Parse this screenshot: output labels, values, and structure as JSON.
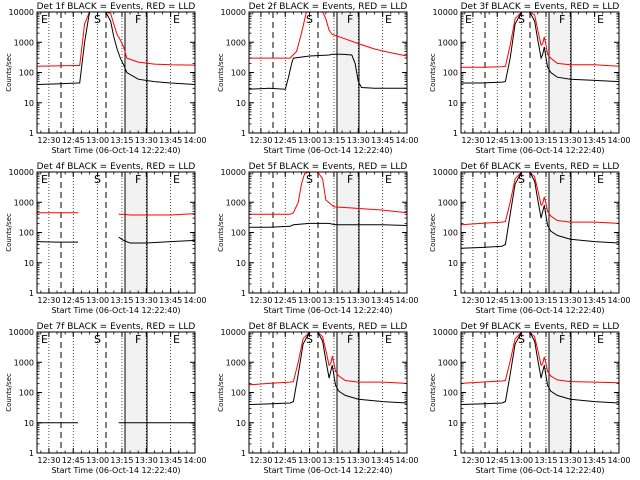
{
  "chart_data": [
    {
      "type": "line",
      "title": "Det 1f BLACK = Events, RED = LLD",
      "xlabel": "Start Time (06-Oct-14 12:22:40)",
      "ylabel": "Counts/sec",
      "xticks": [
        "12:30",
        "12:45",
        "13:00",
        "13:15",
        "13:30",
        "13:45",
        "14:00"
      ],
      "yticks": [
        "1",
        "10",
        "100",
        "1000",
        "10000"
      ],
      "yscale": "log",
      "xlim": [
        "12:22:40",
        "14:00"
      ],
      "ylim": [
        1,
        10000
      ],
      "markers": [
        "E",
        "S",
        "F",
        "E"
      ],
      "series": [
        {
          "color": "#ff0000",
          "x": [
            "12:22:40",
            "12:35",
            "12:48",
            "12:49",
            "12:52",
            "12:55",
            "12:57",
            "13:00",
            "13:05",
            "13:08",
            "13:10",
            "13:12",
            "13:14",
            "13:16",
            "13:18",
            "13:25",
            "13:35",
            "13:45",
            "14:00"
          ],
          "y": [
            160,
            165,
            170,
            170,
            4000,
            10000,
            10000,
            10000,
            10000,
            9000,
            4000,
            1800,
            1200,
            700,
            300,
            220,
            190,
            180,
            175
          ]
        },
        {
          "color": "#000000",
          "x": [
            "12:22:40",
            "12:35",
            "12:48",
            "12:49",
            "12:52",
            "12:55",
            "12:57",
            "13:00",
            "13:05",
            "13:08",
            "13:10",
            "13:12",
            "13:14",
            "13:16",
            "13:18",
            "13:25",
            "13:35",
            "13:45",
            "14:00"
          ],
          "y": [
            40,
            42,
            45,
            45,
            1000,
            10000,
            10000,
            10000,
            10000,
            5000,
            1500,
            600,
            300,
            180,
            100,
            60,
            50,
            45,
            40
          ]
        }
      ]
    },
    {
      "type": "line",
      "title": "Det 2f BLACK = Events, RED = LLD",
      "xlabel": "Start Time (06-Oct-14 12:22:40)",
      "ylabel": "Counts/sec",
      "xticks": [
        "12:30",
        "12:45",
        "13:00",
        "13:15",
        "13:30",
        "13:45",
        "14:00"
      ],
      "yticks": [
        "1",
        "10",
        "100",
        "1000",
        "10000"
      ],
      "yscale": "log",
      "xlim": [
        "12:22:40",
        "14:00"
      ],
      "ylim": [
        1,
        10000
      ],
      "markers": [
        "S",
        "F",
        "E"
      ],
      "series": [
        {
          "color": "#ff0000",
          "x": [
            "12:22:40",
            "12:35",
            "12:48",
            "12:52",
            "12:55",
            "12:58",
            "13:00",
            "13:05",
            "13:08",
            "13:10",
            "13:12",
            "13:14",
            "13:20",
            "13:30",
            "13:40",
            "13:50",
            "14:00"
          ],
          "y": [
            300,
            300,
            300,
            500,
            2000,
            10000,
            10000,
            10000,
            10000,
            6000,
            2500,
            1800,
            1400,
            900,
            600,
            450,
            350
          ]
        },
        {
          "color": "#000000",
          "x": [
            "12:22:40",
            "12:35",
            "12:45",
            "12:47",
            "12:49",
            "12:50",
            "13:00",
            "13:12",
            "13:14",
            "13:20",
            "13:26",
            "13:28",
            "13:30",
            "13:32",
            "13:40",
            "14:00"
          ],
          "y": [
            28,
            30,
            28,
            70,
            200,
            300,
            350,
            380,
            400,
            400,
            380,
            200,
            50,
            32,
            30,
            30
          ]
        }
      ]
    },
    {
      "type": "line",
      "title": "Det 3f BLACK = Events, RED = LLD",
      "xlabel": "Start Time (06-Oct-14 12:22:40)",
      "ylabel": "Counts/sec",
      "xticks": [
        "12:30",
        "12:45",
        "13:00",
        "13:15",
        "13:30",
        "13:45",
        "14:00"
      ],
      "yticks": [
        "1",
        "10",
        "100",
        "1000",
        "10000"
      ],
      "yscale": "log",
      "xlim": [
        "12:22:40",
        "14:00"
      ],
      "ylim": [
        1,
        10000
      ],
      "markers": [
        "E",
        "S",
        "F",
        "E"
      ],
      "series": [
        {
          "color": "#ff0000",
          "x": [
            "12:22:40",
            "12:35",
            "12:48",
            "12:50",
            "12:53",
            "12:56",
            "13:00",
            "13:05",
            "13:08",
            "13:10",
            "13:12",
            "13:13",
            "13:14",
            "13:15",
            "13:16",
            "13:18",
            "13:22",
            "13:30",
            "13:45",
            "14:00"
          ],
          "y": [
            150,
            150,
            155,
            160,
            800,
            6000,
            10000,
            10000,
            8000,
            2500,
            800,
            900,
            1500,
            800,
            400,
            300,
            200,
            180,
            180,
            160
          ]
        },
        {
          "color": "#000000",
          "x": [
            "12:22:40",
            "12:35",
            "12:48",
            "12:50",
            "12:53",
            "12:56",
            "13:00",
            "13:05",
            "13:08",
            "13:10",
            "13:12",
            "13:13",
            "13:14",
            "13:15",
            "13:16",
            "13:18",
            "13:22",
            "13:30",
            "13:45",
            "14:00"
          ],
          "y": [
            45,
            45,
            48,
            50,
            300,
            4000,
            10000,
            10000,
            5000,
            1200,
            300,
            400,
            700,
            300,
            150,
            100,
            70,
            60,
            55,
            50
          ]
        }
      ]
    },
    {
      "type": "line",
      "title": "Det 4f BLACK = Events, RED = LLD",
      "xlabel": "Start Time (06-Oct-14 12:22:40)",
      "ylabel": "Counts/sec",
      "xticks": [
        "12:30",
        "12:45",
        "13:00",
        "13:15",
        "13:30",
        "13:45",
        "14:00"
      ],
      "yticks": [
        "1",
        "10",
        "100",
        "1000",
        "10000"
      ],
      "yscale": "log",
      "xlim": [
        "12:22:40",
        "14:00"
      ],
      "ylim": [
        1,
        10000
      ],
      "markers": [
        "E",
        "S",
        "F",
        "E"
      ],
      "series": [
        {
          "color": "#ff0000",
          "x": [
            "12:22:40",
            "12:35",
            "12:48",
            "13:12",
            "13:13",
            "13:16",
            "13:20",
            "13:30",
            "13:45",
            "14:00"
          ],
          "y": [
            450,
            450,
            450,
            null,
            400,
            400,
            380,
            380,
            380,
            420
          ]
        },
        {
          "color": "#000000",
          "x": [
            "12:22:40",
            "12:35",
            "12:48",
            "13:12",
            "13:13",
            "13:16",
            "13:20",
            "13:30",
            "13:45",
            "14:00"
          ],
          "y": [
            50,
            48,
            48,
            null,
            70,
            55,
            45,
            45,
            50,
            55
          ]
        }
      ]
    },
    {
      "type": "line",
      "title": "Det 5f BLACK = Events, RED = LLD",
      "xlabel": "Start Time (06-Oct-14 12:22:40)",
      "ylabel": "Counts/sec",
      "xticks": [
        "12:30",
        "12:45",
        "13:00",
        "13:15",
        "13:30",
        "13:45",
        "14:00"
      ],
      "yticks": [
        "1",
        "10",
        "100",
        "1000",
        "10000"
      ],
      "yscale": "log",
      "xlim": [
        "12:22:40",
        "14:00"
      ],
      "ylim": [
        1,
        10000
      ],
      "markers": [
        "S",
        "F",
        "E"
      ],
      "series": [
        {
          "color": "#ff0000",
          "x": [
            "12:22:40",
            "12:35",
            "12:48",
            "12:50",
            "12:53",
            "12:55",
            "12:57",
            "13:00",
            "13:05",
            "13:08",
            "13:10",
            "13:15",
            "13:25",
            "13:35",
            "13:45",
            "14:00"
          ],
          "y": [
            400,
            400,
            400,
            450,
            1000,
            4000,
            9000,
            10000,
            10000,
            6000,
            1200,
            700,
            650,
            600,
            550,
            450
          ]
        },
        {
          "color": "#000000",
          "x": [
            "12:22:40",
            "12:35",
            "12:48",
            "12:50",
            "13:00",
            "13:12",
            "13:14",
            "13:16",
            "13:20",
            "13:30",
            "13:45",
            "14:00"
          ],
          "y": [
            150,
            150,
            160,
            180,
            200,
            200,
            190,
            180,
            180,
            180,
            180,
            170
          ]
        }
      ]
    },
    {
      "type": "line",
      "title": "Det 6f BLACK = Events, RED = LLD",
      "xlabel": "Start Time (06-Oct-14 12:22:40)",
      "ylabel": "Counts/sec",
      "xticks": [
        "12:30",
        "12:45",
        "13:00",
        "13:15",
        "13:30",
        "13:45",
        "14:00"
      ],
      "yticks": [
        "1",
        "10",
        "100",
        "1000",
        "10000"
      ],
      "yscale": "log",
      "xlim": [
        "12:22:40",
        "14:00"
      ],
      "ylim": [
        1,
        10000
      ],
      "markers": [
        "S",
        "F",
        "E"
      ],
      "series": [
        {
          "color": "#ff0000",
          "x": [
            "12:22:40",
            "12:35",
            "12:48",
            "12:50",
            "12:53",
            "12:56",
            "13:00",
            "13:05",
            "13:08",
            "13:10",
            "13:12",
            "13:13",
            "13:14",
            "13:15",
            "13:16",
            "13:18",
            "13:22",
            "13:30",
            "13:45",
            "14:00"
          ],
          "y": [
            180,
            200,
            220,
            230,
            1000,
            6000,
            10000,
            10000,
            7000,
            2500,
            800,
            900,
            1500,
            900,
            500,
            350,
            250,
            220,
            220,
            200
          ]
        },
        {
          "color": "#000000",
          "x": [
            "12:22:40",
            "12:35",
            "12:48",
            "12:50",
            "12:53",
            "12:56",
            "13:00",
            "13:05",
            "13:08",
            "13:10",
            "13:12",
            "13:13",
            "13:14",
            "13:15",
            "13:16",
            "13:18",
            "13:22",
            "13:30",
            "13:45",
            "14:00"
          ],
          "y": [
            30,
            32,
            35,
            40,
            400,
            4000,
            10000,
            10000,
            5000,
            1200,
            300,
            500,
            800,
            350,
            170,
            110,
            80,
            60,
            50,
            45
          ]
        }
      ]
    },
    {
      "type": "line",
      "title": "Det 7f BLACK = Events, RED = LLD",
      "xlabel": "Start Time (06-Oct-14 12:22:40)",
      "ylabel": "Counts/sec",
      "xticks": [
        "12:30",
        "12:45",
        "13:00",
        "13:15",
        "13:30",
        "13:45",
        "14:00"
      ],
      "yticks": [
        "1",
        "10",
        "100",
        "1000",
        "10000"
      ],
      "yscale": "log",
      "xlim": [
        "12:22:40",
        "14:00"
      ],
      "ylim": [
        1,
        10000
      ],
      "markers": [
        "E",
        "S",
        "F",
        "E"
      ],
      "series": [
        {
          "color": "#000000",
          "x": [
            "12:22:40",
            "12:35",
            "12:48",
            "13:12",
            "13:13",
            "13:20",
            "13:30",
            "13:45",
            "14:00"
          ],
          "y": [
            10,
            10,
            10,
            null,
            10,
            10,
            10,
            10,
            10
          ]
        }
      ]
    },
    {
      "type": "line",
      "title": "Det 8f BLACK = Events, RED = LLD",
      "xlabel": "Start Time (06-Oct-14 12:22:40)",
      "ylabel": "Counts/sec",
      "xticks": [
        "12:30",
        "12:45",
        "13:00",
        "13:15",
        "13:30",
        "13:45",
        "14:00"
      ],
      "yticks": [
        "1",
        "10",
        "100",
        "1000",
        "10000"
      ],
      "yscale": "log",
      "xlim": [
        "12:22:40",
        "14:00"
      ],
      "ylim": [
        1,
        10000
      ],
      "markers": [
        "S",
        "F",
        "E"
      ],
      "series": [
        {
          "color": "#ff0000",
          "x": [
            "12:22:40",
            "12:35",
            "12:48",
            "12:50",
            "12:53",
            "12:56",
            "13:00",
            "13:05",
            "13:08",
            "13:10",
            "13:12",
            "13:13",
            "13:14",
            "13:15",
            "13:16",
            "13:18",
            "13:22",
            "13:30",
            "13:45",
            "14:00"
          ],
          "y": [
            180,
            200,
            220,
            230,
            1000,
            6000,
            10000,
            10000,
            7000,
            2500,
            800,
            900,
            1600,
            900,
            500,
            350,
            250,
            220,
            220,
            200
          ]
        },
        {
          "color": "#000000",
          "x": [
            "12:22:40",
            "12:35",
            "12:48",
            "12:50",
            "12:53",
            "12:56",
            "13:00",
            "13:05",
            "13:08",
            "13:10",
            "13:12",
            "13:13",
            "13:14",
            "13:15",
            "13:16",
            "13:18",
            "13:22",
            "13:30",
            "13:45",
            "14:00"
          ],
          "y": [
            40,
            42,
            45,
            50,
            400,
            4000,
            10000,
            10000,
            5000,
            1200,
            300,
            500,
            800,
            350,
            170,
            110,
            80,
            60,
            50,
            45
          ]
        }
      ]
    },
    {
      "type": "line",
      "title": "Det 9f BLACK = Events, RED = LLD",
      "xlabel": "Start Time (06-Oct-14 12:22:40)",
      "ylabel": "Counts/sec",
      "xticks": [
        "12:30",
        "12:45",
        "13:00",
        "13:15",
        "13:30",
        "13:45",
        "14:00"
      ],
      "yticks": [
        "1",
        "10",
        "100",
        "1000",
        "10000"
      ],
      "yscale": "log",
      "xlim": [
        "12:22:40",
        "14:00"
      ],
      "ylim": [
        1,
        10000
      ],
      "markers": [
        "S",
        "F",
        "E"
      ],
      "series": [
        {
          "color": "#ff0000",
          "x": [
            "12:22:40",
            "12:35",
            "12:48",
            "12:50",
            "12:53",
            "12:56",
            "13:00",
            "13:05",
            "13:08",
            "13:10",
            "13:12",
            "13:13",
            "13:14",
            "13:15",
            "13:16",
            "13:18",
            "13:22",
            "13:30",
            "13:45",
            "14:00"
          ],
          "y": [
            200,
            220,
            240,
            250,
            1100,
            6000,
            10000,
            10000,
            7000,
            2500,
            800,
            900,
            1500,
            900,
            500,
            350,
            260,
            230,
            220,
            210
          ]
        },
        {
          "color": "#000000",
          "x": [
            "12:22:40",
            "12:35",
            "12:48",
            "12:50",
            "12:53",
            "12:56",
            "13:00",
            "13:05",
            "13:08",
            "13:10",
            "13:12",
            "13:13",
            "13:14",
            "13:15",
            "13:16",
            "13:18",
            "13:22",
            "13:30",
            "13:45",
            "14:00"
          ],
          "y": [
            40,
            42,
            45,
            50,
            400,
            4000,
            10000,
            10000,
            5000,
            1200,
            300,
            500,
            800,
            350,
            170,
            110,
            80,
            60,
            50,
            45
          ]
        }
      ]
    }
  ]
}
